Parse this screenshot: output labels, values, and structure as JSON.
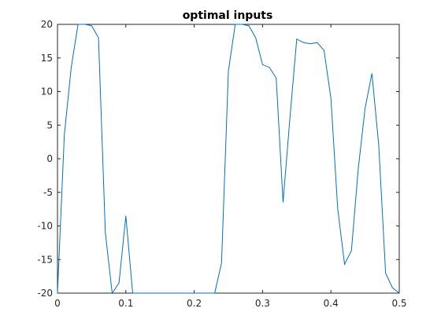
{
  "chart_data": {
    "type": "line",
    "title": "optimal inputs",
    "xlabel": "",
    "ylabel": "",
    "xlim": [
      0,
      0.5
    ],
    "ylim": [
      -20,
      20
    ],
    "grid": false,
    "xticks": [
      0,
      0.1,
      0.2,
      0.3,
      0.4,
      0.5
    ],
    "xtick_labels": [
      "0",
      "0.1",
      "0.2",
      "0.3",
      "0.4",
      "0.5"
    ],
    "yticks": [
      -20,
      -15,
      -10,
      -5,
      0,
      5,
      10,
      15,
      20
    ],
    "ytick_labels": [
      "-20",
      "-15",
      "-10",
      "-5",
      "0",
      "5",
      "10",
      "15",
      "20"
    ],
    "series": [
      {
        "color": "#0072BD",
        "x": [
          0,
          0.01,
          0.02,
          0.03,
          0.04,
          0.05,
          0.06,
          0.07,
          0.08,
          0.09,
          0.1,
          0.11,
          0.12,
          0.13,
          0.14,
          0.15,
          0.16,
          0.17,
          0.18,
          0.19,
          0.2,
          0.21,
          0.22,
          0.23,
          0.24,
          0.25,
          0.26,
          0.27,
          0.28,
          0.29,
          0.3,
          0.31,
          0.32,
          0.33,
          0.34,
          0.35,
          0.36,
          0.37,
          0.38,
          0.39,
          0.4,
          0.41,
          0.42,
          0.43,
          0.44,
          0.45,
          0.46,
          0.47,
          0.48,
          0.49,
          0.5
        ],
        "y": [
          -20,
          3.5,
          13.5,
          20,
          20,
          19.8,
          18,
          -11,
          -20,
          -18.5,
          -8.5,
          -20,
          -20,
          -20,
          -20,
          -20,
          -20,
          -20,
          -20,
          -20,
          -20,
          -20,
          -20,
          -20,
          -15.5,
          13,
          20,
          20,
          19.8,
          18,
          14,
          13.6,
          12,
          -6.5,
          6,
          17.8,
          17.3,
          17.1,
          17.3,
          16.1,
          9,
          -7.5,
          -15.7,
          -13.7,
          -1.5,
          7.5,
          12.7,
          2,
          -17,
          -19.2,
          -20
        ]
      }
    ]
  }
}
